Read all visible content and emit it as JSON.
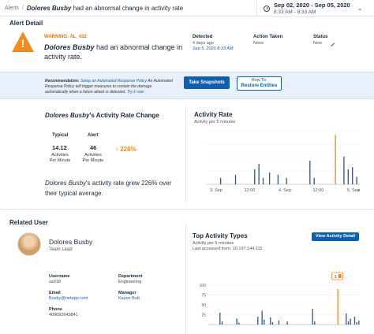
{
  "breadcrumb": {
    "root": "Alerts",
    "separator": "/",
    "user": "Dolores Busby",
    "title_rest": "had an abnormal change in activity rate"
  },
  "date_range": {
    "range": "Sep 02, 2020 - Sep 05, 2020",
    "time": "8:33 AM - 8:33 AM"
  },
  "alert_detail": {
    "section_label": "Alert Detail",
    "warning_label": "WARNING: AL_432",
    "user": "Dolores Busby",
    "title_rest": "had an abnormal change in activity rate.",
    "detected": {
      "label": "Detected",
      "ago": "4 days ago",
      "date": "Sep 5, 2020 8:33 AM"
    },
    "action_taken": {
      "label": "Action Taken",
      "value": "None"
    },
    "status": {
      "label": "Status",
      "value": "New"
    }
  },
  "recommendation": {
    "label": "Recommendation:",
    "link": "Setup an Automated Response Policy",
    "body": "An Automated Response Policy will trigger measures to contain the damage automatically when a future attack is detected.",
    "try_link": "Try it now",
    "snapshot_button": "Take Snapshots",
    "restore_line1": "How To:",
    "restore_line2": "Restore Entities"
  },
  "activity_change": {
    "user": "Dolores Busby",
    "title_rest": "'s Activity Rate Change",
    "typical": {
      "label": "Typical",
      "value": "14.12",
      "unit1": "Activities",
      "unit2": "Per Minute"
    },
    "alert": {
      "label": "Alert",
      "value": "46",
      "unit1": "Activities",
      "unit2": "Per Minute"
    },
    "change": "226%",
    "summary_user": "Dolores Busby",
    "summary_rest": "'s  activity rate grew 226% over their typical average."
  },
  "activity_rate_chart": {
    "title": "Activity Rate",
    "subtitle": "Activity per 5 minutes",
    "x_ticks": [
      "3. Sep",
      "12:00",
      "4. Sep",
      "12:00",
      "5. Sep"
    ]
  },
  "related_user": {
    "section_label": "Related User",
    "name": "Dolores Busby",
    "role": "Team Lead",
    "username_label": "Username",
    "username": "us018",
    "department_label": "Department",
    "department": "Engineering",
    "email_label": "Email",
    "email": "Busby@netapp.com",
    "manager_label": "Manager",
    "manager": "Kazon Butt",
    "phone_label": "Phone",
    "phone": "409092643841"
  },
  "top_activity": {
    "title": "Top Activity Types",
    "subtitle1": "Activity per 5 minutes",
    "subtitle2": "Last accessed from: 10.197.144.115",
    "button": "View Activity Detail",
    "marker": "1",
    "y_ticks": [
      "100",
      "75",
      "50",
      "25"
    ]
  },
  "colors": {
    "primary": "#0f5fb0",
    "warning": "#f28c1e",
    "bar": "#3d5a80",
    "highlight": "#f28c1e"
  },
  "chart_data": [
    {
      "type": "bar",
      "title": "Activity Rate",
      "subtitle": "Activity per 5 minutes",
      "x_ticks": [
        "3. Sep",
        "12:00",
        "4. Sep",
        "12:00",
        "5. Sep"
      ],
      "ylim": [
        0,
        50
      ],
      "grid": true,
      "values": [
        0,
        0,
        0,
        0,
        0,
        0,
        6,
        0,
        0,
        0,
        0,
        0,
        0,
        9,
        0,
        0,
        0,
        0,
        0,
        0,
        0,
        0,
        14,
        0,
        19,
        0,
        6,
        0,
        0,
        11,
        0,
        0,
        0,
        9,
        0,
        0,
        0,
        6,
        0,
        0,
        0,
        0,
        0,
        0,
        0,
        0,
        0,
        0,
        22,
        0,
        6,
        0,
        0,
        0,
        0,
        0,
        0,
        0,
        0,
        0,
        46,
        0,
        0,
        0,
        26,
        0,
        14,
        0,
        16,
        0,
        7,
        0
      ],
      "highlight_index": 60
    },
    {
      "type": "bar",
      "title": "Top Activity Types",
      "subtitle": "Activity per 5 minutes",
      "y_ticks": [
        100,
        75,
        50,
        25
      ],
      "ylim": [
        0,
        100
      ],
      "grid": true,
      "values": [
        0,
        0,
        0,
        0,
        0,
        30,
        8,
        0,
        0,
        0,
        0,
        0,
        0,
        15,
        5,
        0,
        0,
        0,
        0,
        0,
        0,
        0,
        0,
        20,
        0,
        35,
        12,
        0,
        0,
        18,
        6,
        0,
        0,
        10,
        0,
        0,
        0,
        8,
        0,
        0,
        0,
        0,
        0,
        0,
        0,
        0,
        0,
        0,
        0,
        40,
        8,
        0,
        0,
        0,
        0,
        0,
        0,
        0,
        0,
        0,
        0,
        90,
        0,
        0,
        0,
        28,
        8,
        15,
        0,
        20,
        6,
        10
      ],
      "highlight_index": 61
    }
  ]
}
